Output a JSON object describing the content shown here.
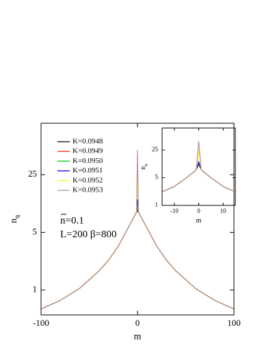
{
  "chart_data": [
    {
      "type": "line",
      "xlabel": "m",
      "ylabel": "n",
      "ylabel_sub": "q",
      "log_y": true,
      "annotations": [
        "n=0.1",
        "L=200 β=800"
      ],
      "x": [
        -100,
        -80,
        -60,
        -40,
        -30,
        -20,
        -10,
        -5,
        -2,
        -1,
        0,
        1,
        2,
        5,
        10,
        20,
        30,
        40,
        60,
        80,
        100
      ],
      "xlim": [
        -100,
        100
      ],
      "xticks": [
        -100,
        0,
        100
      ],
      "ylim": [
        0.5,
        105
      ],
      "yticks": [
        1,
        5,
        25
      ],
      "series": [
        {
          "name": "K=0.0948",
          "color": "#000000",
          "values": [
            0.59,
            0.75,
            1.05,
            1.7,
            2.3,
            3.4,
            5.6,
            7.2,
            8.4,
            8.8,
            9.0,
            8.8,
            8.4,
            7.2,
            5.6,
            3.4,
            2.3,
            1.7,
            1.05,
            0.75,
            0.59
          ]
        },
        {
          "name": "K=0.0949",
          "color": "#ff0000",
          "values": [
            0.59,
            0.75,
            1.05,
            1.7,
            2.3,
            3.4,
            5.6,
            7.2,
            8.4,
            8.8,
            9.5,
            8.8,
            8.4,
            7.2,
            5.6,
            3.4,
            2.3,
            1.7,
            1.05,
            0.75,
            0.59
          ]
        },
        {
          "name": "K=0.0950",
          "color": "#00cc00",
          "values": [
            0.59,
            0.75,
            1.05,
            1.7,
            2.3,
            3.4,
            5.6,
            7.2,
            8.4,
            8.8,
            10,
            8.8,
            8.4,
            7.2,
            5.6,
            3.4,
            2.3,
            1.7,
            1.05,
            0.75,
            0.59
          ]
        },
        {
          "name": "K=0.0951",
          "color": "#0000ff",
          "values": [
            0.59,
            0.75,
            1.05,
            1.7,
            2.3,
            3.4,
            5.6,
            7.2,
            8.4,
            8.8,
            12.5,
            8.8,
            8.4,
            7.2,
            5.6,
            3.4,
            2.3,
            1.7,
            1.05,
            0.75,
            0.59
          ]
        },
        {
          "name": "K=0.0952",
          "color": "#ffff00",
          "values": [
            0.59,
            0.75,
            1.05,
            1.7,
            2.3,
            3.4,
            5.6,
            7.2,
            8.4,
            8.8,
            34,
            8.8,
            8.4,
            7.2,
            5.6,
            3.4,
            2.3,
            1.7,
            1.05,
            0.75,
            0.59
          ]
        },
        {
          "name": "K=0.0953",
          "color": "#bc8f8f",
          "values": [
            0.59,
            0.75,
            1.05,
            1.7,
            2.3,
            3.4,
            5.6,
            7.2,
            8.4,
            8.8,
            50,
            8.8,
            8.4,
            7.2,
            5.6,
            3.4,
            2.3,
            1.7,
            1.05,
            0.75,
            0.59
          ]
        }
      ]
    },
    {
      "type": "line",
      "xlabel": "m",
      "ylabel": "n",
      "ylabel_sub": "q",
      "log_y": true,
      "x": [
        -15,
        -10,
        -5,
        -2,
        -1,
        0,
        1,
        2,
        5,
        10,
        15
      ],
      "xlim": [
        -15,
        15
      ],
      "xticks": [
        -10,
        0,
        10
      ],
      "ylim": [
        1,
        90
      ],
      "yticks": [
        1,
        5,
        25
      ],
      "series": [
        {
          "color": "#000000",
          "values": [
            2.2,
            3.0,
            5.0,
            7.0,
            8.0,
            10.8,
            8.0,
            7.0,
            5.0,
            3.0,
            2.2
          ]
        },
        {
          "color": "#ff0000",
          "values": [
            2.2,
            3.0,
            5.0,
            7.0,
            8.0,
            11.0,
            8.0,
            7.0,
            5.0,
            3.0,
            2.2
          ]
        },
        {
          "color": "#00cc00",
          "values": [
            2.2,
            3.0,
            5.0,
            7.0,
            8.0,
            11.5,
            8.0,
            7.0,
            5.0,
            3.0,
            2.2
          ]
        },
        {
          "color": "#0000ff",
          "values": [
            2.2,
            3.0,
            5.0,
            7.0,
            8.0,
            12.5,
            8.0,
            7.0,
            5.0,
            3.0,
            2.2
          ]
        },
        {
          "color": "#ffff00",
          "values": [
            2.2,
            3.0,
            5.0,
            7.0,
            8.0,
            25,
            8.0,
            7.0,
            5.0,
            3.0,
            2.2
          ]
        },
        {
          "color": "#bc8f8f",
          "values": [
            2.2,
            3.0,
            5.0,
            7.0,
            8.0,
            42,
            8.0,
            7.0,
            5.0,
            3.0,
            2.2
          ]
        }
      ]
    }
  ]
}
